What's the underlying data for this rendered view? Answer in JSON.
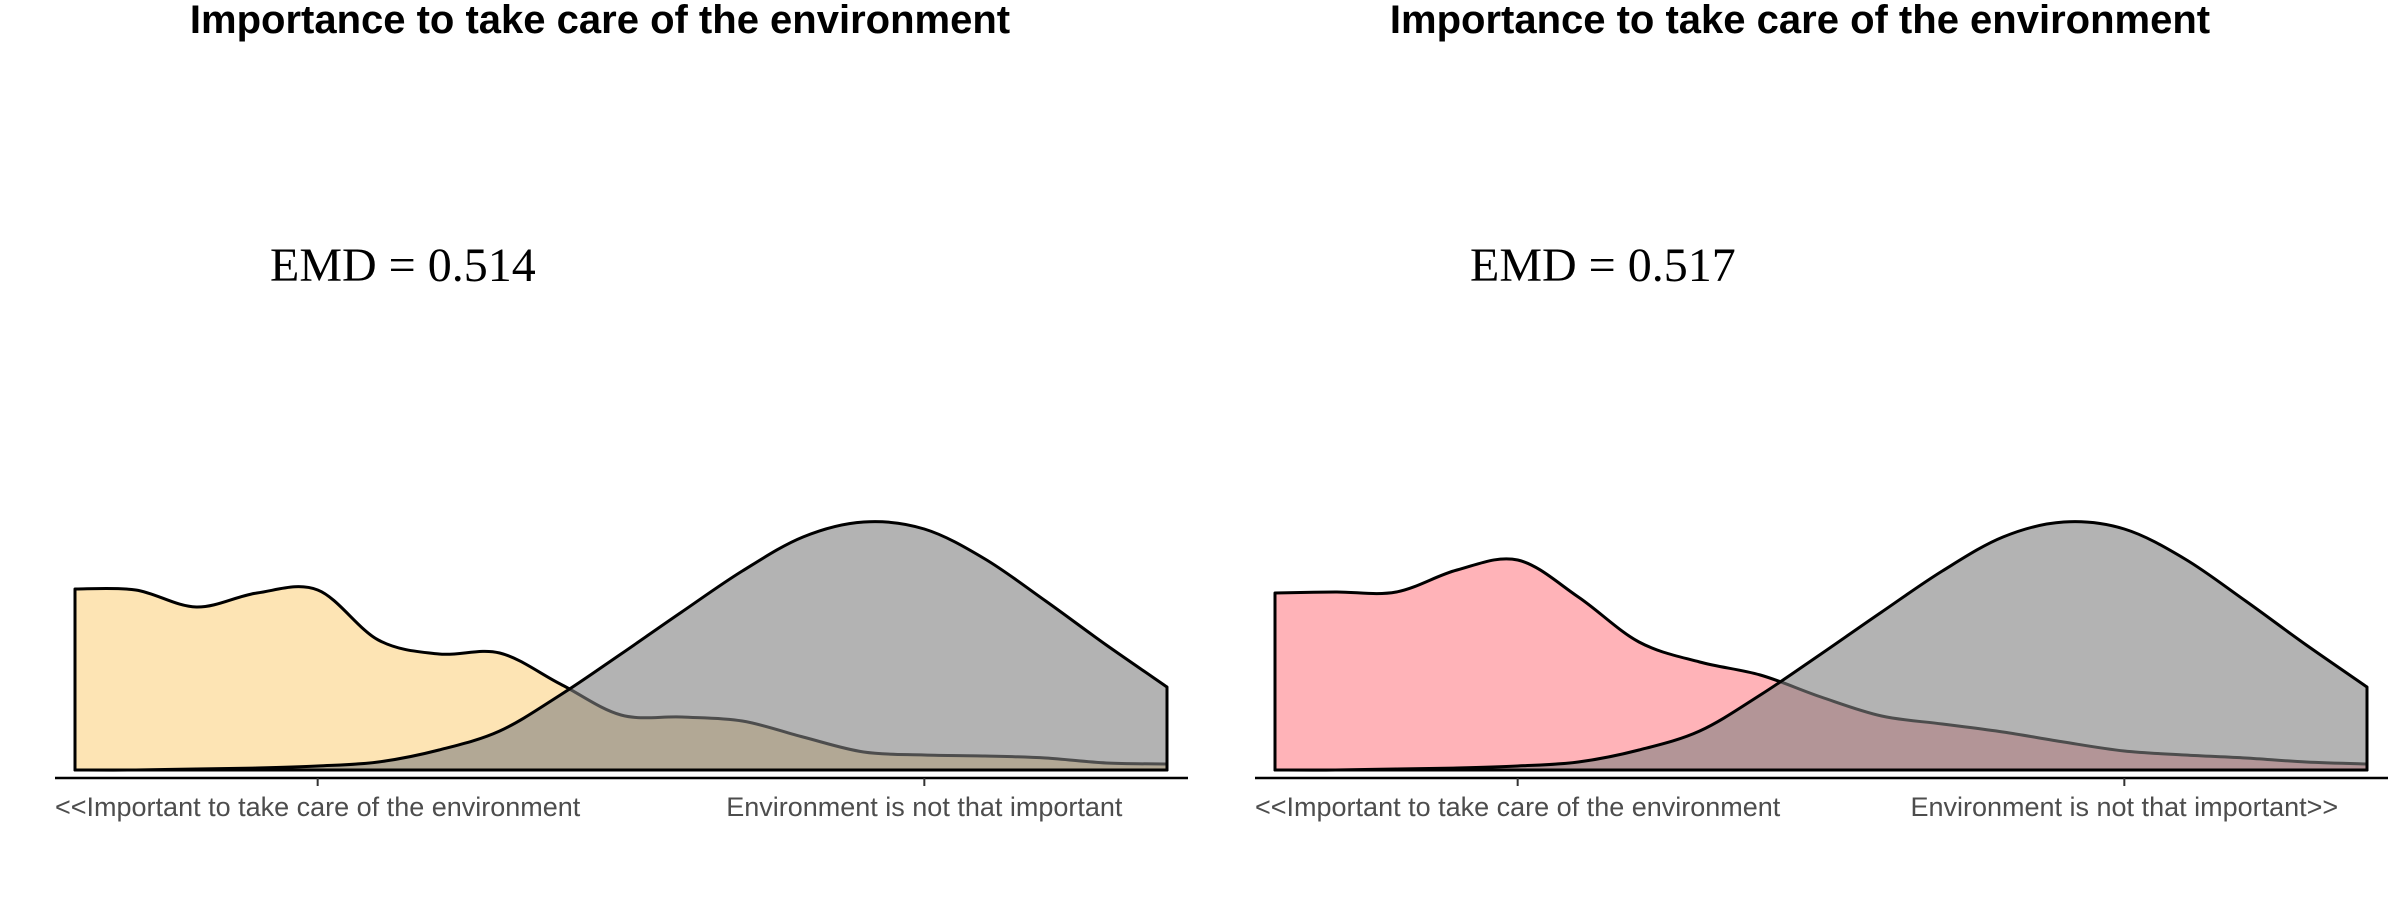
{
  "chart_data": [
    {
      "type": "area",
      "title": "Importance to take care of the environment",
      "annotation": "EMD = 0.514",
      "xlim": [
        1,
        10
      ],
      "ylim": [
        0,
        0.25
      ],
      "x_ticks": [
        3,
        8
      ],
      "tick_labels": [
        "<<Important to take care of the environment",
        "Environment is not that important"
      ],
      "grid": false,
      "series": [
        {
          "color": "#FCD68C",
          "alpha": 0.65,
          "x": [
            1,
            1.5,
            2,
            2.5,
            3,
            3.5,
            4,
            4.5,
            5,
            5.5,
            6,
            6.5,
            7,
            7.5,
            8,
            8.5,
            9,
            9.5,
            10
          ],
          "y": [
            0.181,
            0.18,
            0.163,
            0.177,
            0.18,
            0.13,
            0.116,
            0.117,
            0.086,
            0.055,
            0.053,
            0.049,
            0.033,
            0.018,
            0.015,
            0.014,
            0.012,
            0.007,
            0.006
          ]
        },
        {
          "color": "#808080",
          "alpha": 0.6,
          "x": [
            1,
            1.5,
            2,
            2.5,
            3,
            3.5,
            4,
            4.5,
            5,
            5.5,
            6,
            6.5,
            7,
            7.5,
            8,
            8.5,
            9,
            9.5,
            10
          ],
          "y": [
            0.0,
            0.0,
            0.001,
            0.002,
            0.004,
            0.008,
            0.02,
            0.039,
            0.075,
            0.116,
            0.158,
            0.199,
            0.233,
            0.248,
            0.241,
            0.211,
            0.169,
            0.125,
            0.083
          ]
        }
      ]
    },
    {
      "type": "area",
      "title": "Importance to take care of the environment",
      "annotation": "EMD = 0.517",
      "xlim": [
        1,
        10
      ],
      "ylim": [
        0,
        0.25
      ],
      "x_ticks": [
        3,
        8
      ],
      "tick_labels": [
        "<<Important to take care of the environment",
        "Environment is not that important>>"
      ],
      "grid": false,
      "series": [
        {
          "color": "#FF8088",
          "alpha": 0.6,
          "x": [
            1,
            1.5,
            2,
            2.5,
            3,
            3.5,
            4,
            4.5,
            5,
            5.5,
            6,
            6.5,
            7,
            7.5,
            8,
            8.5,
            9,
            9.5,
            10
          ],
          "y": [
            0.177,
            0.178,
            0.178,
            0.2,
            0.21,
            0.173,
            0.128,
            0.108,
            0.095,
            0.073,
            0.054,
            0.046,
            0.038,
            0.028,
            0.019,
            0.015,
            0.012,
            0.008,
            0.006
          ]
        },
        {
          "color": "#808080",
          "alpha": 0.6,
          "x": [
            1,
            1.5,
            2,
            2.5,
            3,
            3.5,
            4,
            4.5,
            5,
            5.5,
            6,
            6.5,
            7,
            7.5,
            8,
            8.5,
            9,
            9.5,
            10
          ],
          "y": [
            0.0,
            0.0,
            0.001,
            0.002,
            0.004,
            0.008,
            0.02,
            0.039,
            0.075,
            0.116,
            0.158,
            0.199,
            0.233,
            0.248,
            0.241,
            0.211,
            0.169,
            0.125,
            0.083
          ]
        }
      ]
    }
  ]
}
